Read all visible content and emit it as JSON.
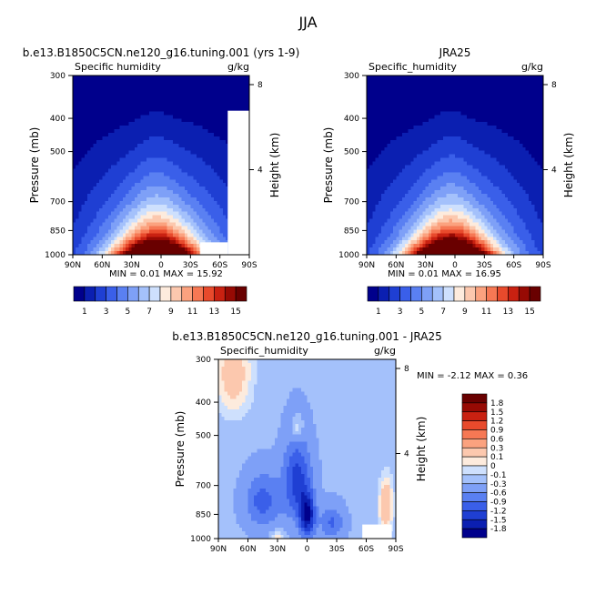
{
  "figure": {
    "title": "JJA"
  },
  "chart_data": [
    {
      "type": "heatmap",
      "title": "b.e13.B1850C5CN.ne120_g16.tuning.001 (yrs 1-9)",
      "left_label": "Specific humidity",
      "units": "g/kg",
      "xlabel": "",
      "ylabel": "Pressure (mb)",
      "y2label": "Height (km)",
      "xticks": [
        "90N",
        "60N",
        "30N",
        "0",
        "30S",
        "60S",
        "90S"
      ],
      "yticks": [
        300,
        400,
        500,
        700,
        850,
        1000
      ],
      "y2ticks": [
        4,
        8
      ],
      "xlim": [
        90,
        -90
      ],
      "ylim": [
        1000,
        300
      ],
      "y_scale": "log",
      "min_label": "MIN =",
      "min_value": "0.01",
      "max_label": "MAX =",
      "max_value": "15.92",
      "peak_lat": 5,
      "peak_value": 15.92
    },
    {
      "type": "heatmap",
      "title": "JRA25",
      "left_label": "Specific_humidity",
      "units": "g/kg",
      "xlabel": "",
      "ylabel": "Pressure (mb)",
      "y2label": "Height (km)",
      "xticks": [
        "90N",
        "60N",
        "30N",
        "0",
        "30S",
        "60S",
        "90S"
      ],
      "yticks": [
        300,
        400,
        500,
        700,
        850,
        1000
      ],
      "y2ticks": [
        4,
        8
      ],
      "xlim": [
        90,
        -90
      ],
      "ylim": [
        1000,
        300
      ],
      "y_scale": "log",
      "min_label": "MIN =",
      "min_value": "0.01",
      "max_label": "MAX =",
      "max_value": "16.95",
      "peak_lat": 5,
      "peak_value": 16.95
    },
    {
      "type": "heatmap",
      "title": "b.e13.B1850C5CN.ne120_g16.tuning.001  - JRA25",
      "left_label": "Specific_humidity",
      "units": "g/kg",
      "xlabel": "",
      "ylabel": "Pressure (mb)",
      "y2label": "Height (km)",
      "xticks": [
        "90N",
        "60N",
        "30N",
        "0",
        "30S",
        "60S",
        "90S"
      ],
      "yticks": [
        300,
        400,
        500,
        700,
        850,
        1000
      ],
      "y2ticks": [
        4,
        8
      ],
      "xlim": [
        90,
        -90
      ],
      "ylim": [
        1000,
        300
      ],
      "y_scale": "log",
      "min_label": "MIN =",
      "min_value": "-2.12",
      "max_label": "MAX =",
      "max_value": "0.36"
    }
  ],
  "colorbar_top": {
    "orientation": "horizontal",
    "levels": [
      1,
      2,
      3,
      4,
      5,
      6,
      7,
      8,
      9,
      10,
      11,
      12,
      13,
      14,
      15
    ],
    "labels": [
      "1",
      "3",
      "5",
      "7",
      "9",
      "11",
      "13",
      "15"
    ],
    "colors": [
      "#00008c",
      "#0b1fb1",
      "#1f3fd3",
      "#3a5fe9",
      "#5a80f2",
      "#7ea0f7",
      "#a4c1fb",
      "#cee0fd",
      "#fdebdd",
      "#fcc8ae",
      "#fba27f",
      "#f67854",
      "#e84a2c",
      "#c92111",
      "#970a04",
      "#690000"
    ]
  },
  "colorbar_diff": {
    "orientation": "vertical",
    "levels": [
      -1.8,
      -1.5,
      -1.2,
      -0.9,
      -0.6,
      -0.3,
      -0.1,
      0,
      0.1,
      0.3,
      0.6,
      0.9,
      1.2,
      1.5,
      1.8
    ],
    "labels": [
      "-1.8",
      "-1.5",
      "-1.2",
      "-0.9",
      "-0.6",
      "-0.3",
      "-0.1",
      "0",
      "0.1",
      "0.3",
      "0.6",
      "0.9",
      "1.2",
      "1.5",
      "1.8"
    ],
    "colors": [
      "#00008c",
      "#0b1fb1",
      "#1f3fd3",
      "#3a5fe9",
      "#5a80f2",
      "#7ea0f7",
      "#a4c1fb",
      "#cee0fd",
      "#fdebdd",
      "#fcc8ae",
      "#fba27f",
      "#f67854",
      "#e84a2c",
      "#c92111",
      "#970a04",
      "#690000"
    ]
  }
}
